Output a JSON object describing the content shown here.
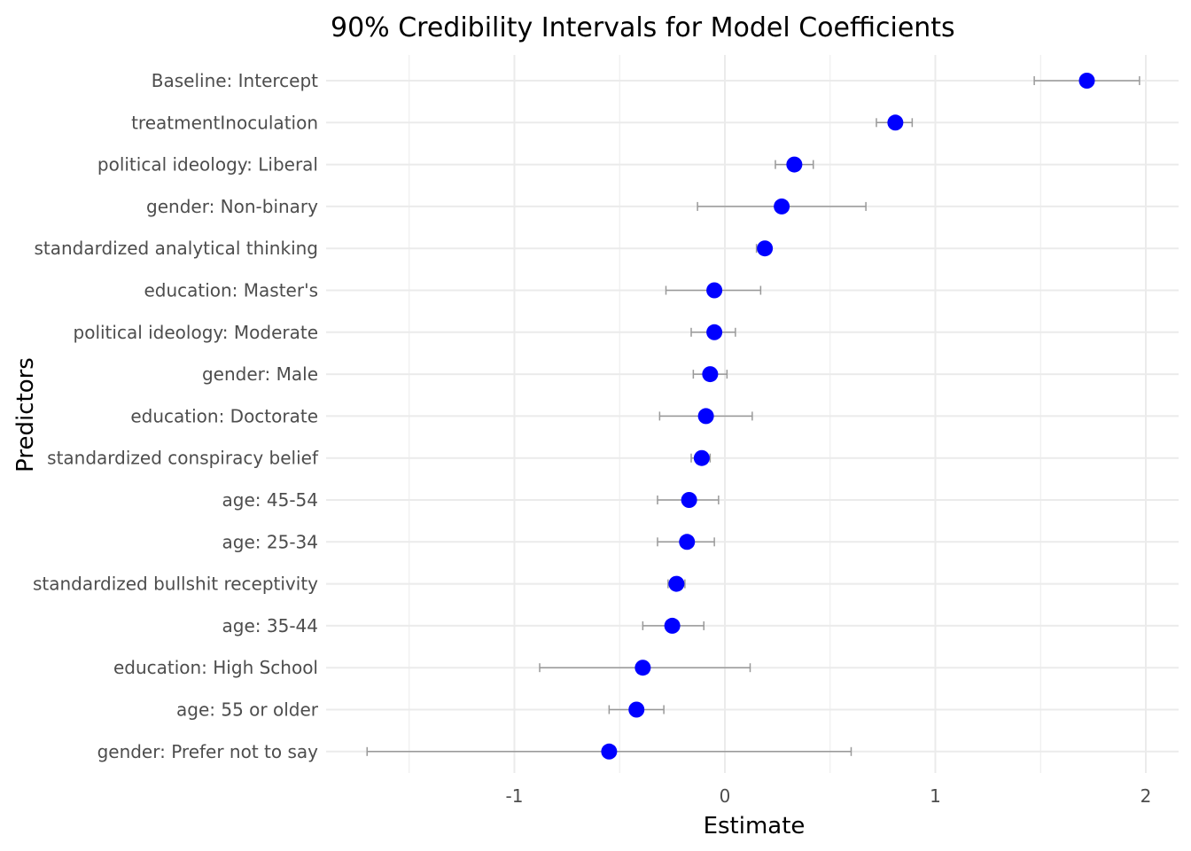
{
  "chart_data": {
    "type": "scatter",
    "title": "90% Credibility Intervals for Model Coefficients",
    "xlabel": "Estimate",
    "ylabel": "Predictors",
    "xlim": [
      -1.87,
      2.15
    ],
    "x_ticks": [
      -1,
      0,
      1,
      2
    ],
    "x_tick_labels": [
      "-1",
      "0",
      "1",
      "2"
    ],
    "grid": true,
    "point_color": "#0000ff",
    "interval_color": "#999999",
    "grid_color": "#ebebeb",
    "predictors": [
      {
        "label": "Baseline: Intercept",
        "estimate": 1.72,
        "lower": 1.47,
        "upper": 1.97
      },
      {
        "label": "treatmentInoculation",
        "estimate": 0.81,
        "lower": 0.72,
        "upper": 0.89
      },
      {
        "label": "political ideology: Liberal",
        "estimate": 0.33,
        "lower": 0.24,
        "upper": 0.42
      },
      {
        "label": "gender: Non-binary",
        "estimate": 0.27,
        "lower": -0.13,
        "upper": 0.67
      },
      {
        "label": "standardized analytical thinking",
        "estimate": 0.19,
        "lower": 0.15,
        "upper": 0.22
      },
      {
        "label": "education: Master's",
        "estimate": -0.05,
        "lower": -0.28,
        "upper": 0.17
      },
      {
        "label": "political ideology: Moderate",
        "estimate": -0.05,
        "lower": -0.16,
        "upper": 0.05
      },
      {
        "label": "gender: Male",
        "estimate": -0.07,
        "lower": -0.15,
        "upper": 0.01
      },
      {
        "label": "education: Doctorate",
        "estimate": -0.09,
        "lower": -0.31,
        "upper": 0.13
      },
      {
        "label": "standardized conspiracy belief",
        "estimate": -0.11,
        "lower": -0.16,
        "upper": -0.07
      },
      {
        "label": "age: 45-54",
        "estimate": -0.17,
        "lower": -0.32,
        "upper": -0.03
      },
      {
        "label": "age: 25-34",
        "estimate": -0.18,
        "lower": -0.32,
        "upper": -0.05
      },
      {
        "label": "standardized bullshit receptivity",
        "estimate": -0.23,
        "lower": -0.27,
        "upper": -0.19
      },
      {
        "label": "age: 35-44",
        "estimate": -0.25,
        "lower": -0.39,
        "upper": -0.1
      },
      {
        "label": "education: High School",
        "estimate": -0.39,
        "lower": -0.88,
        "upper": 0.12
      },
      {
        "label": "age: 55 or older",
        "estimate": -0.42,
        "lower": -0.55,
        "upper": -0.29
      },
      {
        "label": "gender: Prefer not to say",
        "estimate": -0.55,
        "lower": -1.7,
        "upper": 0.6
      }
    ]
  }
}
